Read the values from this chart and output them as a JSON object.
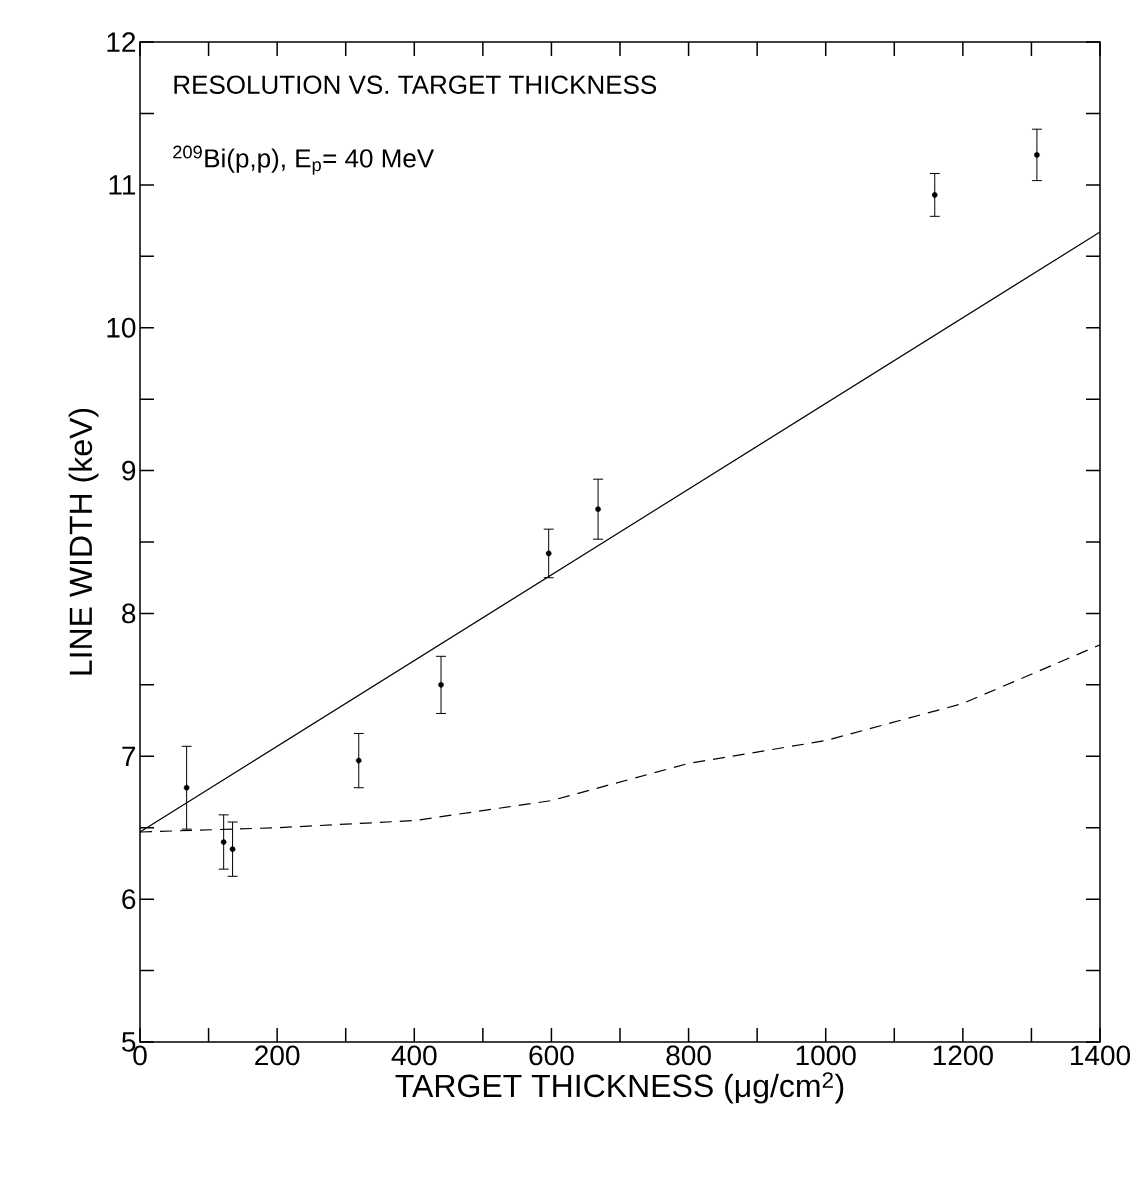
{
  "chart_data": {
    "type": "scatter",
    "xlabel": "TARGET THICKNESS (μg/cm$^{2}$)",
    "ylabel": "LINE WIDTH (keV)",
    "annotations": [
      "RESOLUTION VS. TARGET THICKNESS",
      "$^{209}$Bi(p,p), E$_{p}$= 40 MeV"
    ],
    "xlim": [
      0,
      1400
    ],
    "ylim": [
      5,
      12
    ],
    "xticks": [
      0,
      {
        "value": 100,
        "label": null
      },
      200,
      {
        "value": 300,
        "label": null
      },
      400,
      {
        "value": 500,
        "label": null
      },
      600,
      {
        "value": 700,
        "label": null
      },
      800,
      {
        "value": 900,
        "label": null
      },
      1000,
      {
        "value": 1100,
        "label": null
      },
      1200,
      {
        "value": 1300,
        "label": null
      },
      1400
    ],
    "yticks": [
      5,
      {
        "value": 5.5,
        "label": null
      },
      6,
      {
        "value": 6.5,
        "label": null
      },
      7,
      {
        "value": 7.5,
        "label": null
      },
      8,
      {
        "value": 8.5,
        "label": null
      },
      9,
      {
        "value": 9.5,
        "label": null
      },
      10,
      {
        "value": 10.5,
        "label": null
      },
      11,
      {
        "value": 11.5,
        "label": null
      },
      12
    ],
    "series": [
      {
        "color": "#000000",
        "marker": "circle",
        "x": [
          68,
          122,
          135,
          319,
          439,
          596,
          668,
          1159,
          1308
        ],
        "values": [
          6.78,
          6.4,
          6.35,
          6.97,
          7.5,
          8.42,
          8.73,
          10.93,
          11.21
        ],
        "errors": [
          0.29,
          0.19,
          0.19,
          0.19,
          0.2,
          0.17,
          0.21,
          0.15,
          0.18
        ]
      },
      {
        "type": "line",
        "color": "#000000",
        "line_style": "solid",
        "x": [
          0,
          1400
        ],
        "values": [
          6.47,
          10.67
        ]
      },
      {
        "type": "line",
        "color": "#000000",
        "line_style": "dashed",
        "x": [
          0,
          200,
          400,
          600,
          800,
          1000,
          1200,
          1400
        ],
        "values": [
          6.47,
          6.5,
          6.55,
          6.69,
          6.95,
          7.11,
          7.37,
          7.78
        ]
      }
    ]
  }
}
